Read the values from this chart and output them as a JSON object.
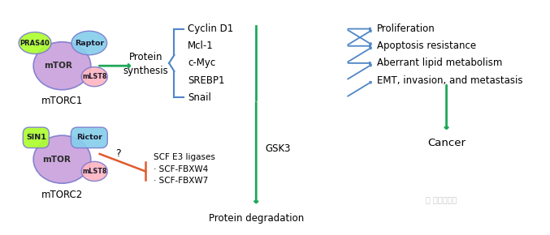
{
  "background_color": "#ffffff",
  "mtorc1_label": "mTORC1",
  "mtorc2_label": "mTORC2",
  "mtor_color": "#c9a0dc",
  "mtor_border_color": "#7b7bcd",
  "raptor_color": "#87ceeb",
  "mlst8_color": "#ffb6c1",
  "pras40_color": "#adff2f",
  "rictor_color": "#87ceeb",
  "sin1_color": "#adff2f",
  "protein_synthesis_text": "Protein\nsynthesis",
  "protein_degradation_text": "Protein degradation",
  "gsk3_text": "GSK3",
  "cancer_text": "Cancer",
  "left_proteins": [
    "Cyclin D1",
    "Mcl-1",
    "c-Myc",
    "SREBP1",
    "Snail"
  ],
  "right_effects": [
    "Proliferation",
    "Apoptosis resistance",
    "Aberrant lipid metabolism",
    "EMT, invasion, and metastasis"
  ],
  "scf_text": "SCF E3 ligases\n· SCF-FBXW4\n· SCF-FBXW7",
  "green_arrow_color": "#1fa85a",
  "blue_arrow_color": "#4f86c6",
  "red_line_color": "#e05a2b",
  "bracket_color": "#4f86c6",
  "watermark_text": "凸 凸莱英药周",
  "figsize": [
    6.77,
    2.9
  ],
  "dpi": 100,
  "xlim": [
    0,
    10
  ],
  "ylim": [
    0,
    4.3
  ]
}
